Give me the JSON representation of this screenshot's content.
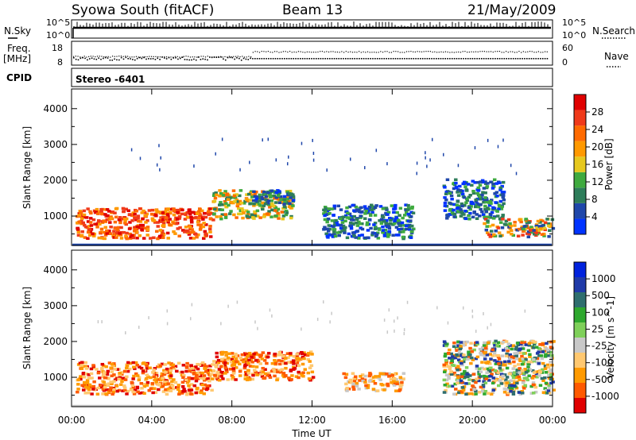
{
  "header": {
    "station": "Syowa South (fitACF)",
    "beam": "Beam 13",
    "date": "21/May/2009"
  },
  "sidebar": {
    "nsky_label": "N.Sky",
    "nsearch_label": "N.Search",
    "freq_label": "Freq.",
    "freq_unit": "[MHz]",
    "nave_label": "Nave",
    "cpid_label": "CPID",
    "cpid_value": "Stereo -6401"
  },
  "noise_panel": {
    "ticks_left": [
      "10^5",
      "10^0"
    ],
    "ticks_right": [
      "10^5",
      "10^0"
    ]
  },
  "freq_panel": {
    "ticks_left": [
      "18",
      "8"
    ],
    "ticks_right": [
      "60",
      "0"
    ],
    "freq_level": 11.0,
    "nave_level": 28
  },
  "colors": {
    "power_scale": [
      "#0033ff",
      "#1f47aa",
      "#2e7d5a",
      "#3faa3f",
      "#e6c81e",
      "#ff9900",
      "#ff6a00",
      "#f03a1a",
      "#e00000"
    ],
    "velocity_scale": [
      "#e00000",
      "#ff5a00",
      "#ff9a00",
      "#ffc870",
      "#c8c8c8",
      "#7fd05a",
      "#2ea82e",
      "#2e6e6e",
      "#1f3aa8",
      "#0022dd"
    ]
  },
  "chart_data": [
    {
      "type": "heatmap",
      "panel": "power",
      "ylabel": "Slant Range [km]",
      "ylim": [
        180,
        4550
      ],
      "yticks": [
        1000,
        2000,
        3000,
        4000
      ],
      "colorbar_label": "Power [dB]",
      "colorbar_ticks": [
        4,
        8,
        12,
        16,
        20,
        24,
        28
      ],
      "colorbar_range": [
        0,
        30
      ],
      "regions": [
        {
          "t": [
            0.2,
            7.0
          ],
          "r": [
            350,
            1200
          ],
          "level": "high"
        },
        {
          "t": [
            7.0,
            11.0
          ],
          "r": [
            900,
            1700
          ],
          "level": "mid"
        },
        {
          "t": [
            9.0,
            11.0
          ],
          "r": [
            1300,
            1700
          ],
          "level": "low"
        },
        {
          "t": [
            12.5,
            17.0
          ],
          "r": [
            350,
            1300
          ],
          "level": "low"
        },
        {
          "t": [
            18.5,
            21.5
          ],
          "r": [
            900,
            2000
          ],
          "level": "low"
        },
        {
          "t": [
            20.5,
            24.0
          ],
          "r": [
            400,
            900
          ],
          "level": "mixed"
        }
      ]
    },
    {
      "type": "heatmap",
      "panel": "velocity",
      "ylabel": "Slant Range [km]",
      "xlabel": "Time UT",
      "ylim": [
        180,
        4550
      ],
      "yticks": [
        1000,
        2000,
        3000,
        4000
      ],
      "colorbar_label": "Velocity [m s^-1]",
      "colorbar_ticks": [
        "1000",
        "500",
        "100",
        "25",
        "-25",
        "-100",
        "-500",
        "-1000"
      ],
      "xticks": [
        "00:00",
        "04:00",
        "08:00",
        "12:00",
        "16:00",
        "20:00",
        "00:00"
      ],
      "xlim_hours": [
        0,
        24
      ],
      "regions": [
        {
          "t": [
            0.2,
            7.0
          ],
          "r": [
            500,
            1400
          ],
          "level": "neg-mid"
        },
        {
          "t": [
            7.0,
            12.0
          ],
          "r": [
            900,
            1700
          ],
          "level": "neg-mid"
        },
        {
          "t": [
            13.5,
            16.5
          ],
          "r": [
            600,
            1100
          ],
          "level": "neg-low"
        },
        {
          "t": [
            18.5,
            24.0
          ],
          "r": [
            500,
            2000
          ],
          "level": "mixed"
        }
      ]
    }
  ]
}
